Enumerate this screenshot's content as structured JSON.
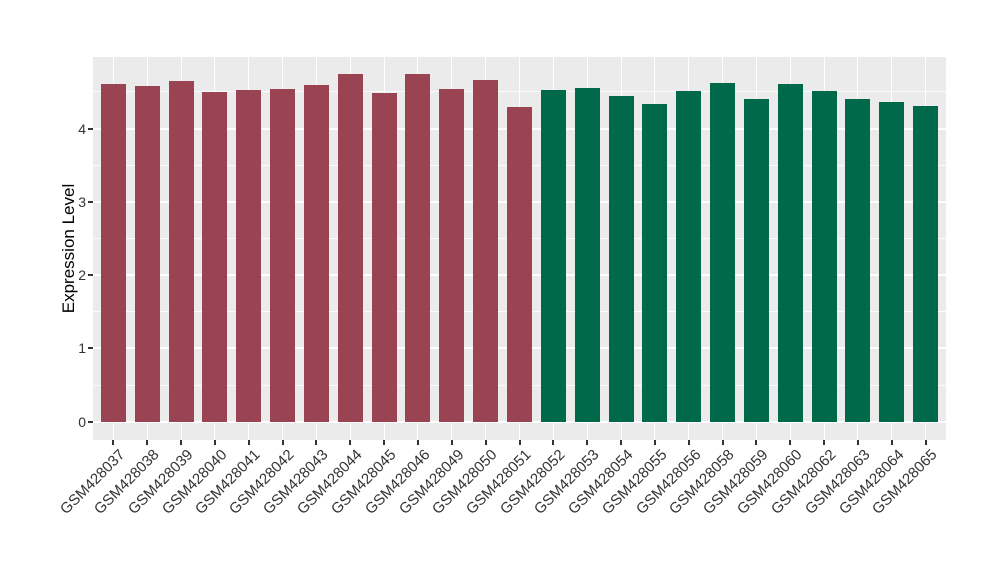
{
  "chart_data": {
    "type": "bar",
    "title": "",
    "xlabel": "",
    "ylabel": "Expression Level",
    "ylim": [
      0,
      4.99
    ],
    "y_ticks": [
      "0",
      "1",
      "2",
      "3",
      "4"
    ],
    "y_minor_ticks": [
      0.5,
      1.5,
      2.5,
      3.5,
      4.5
    ],
    "grid": "on",
    "legend_position": "none",
    "panel_background_color": "#EBEBEB",
    "gridline_color": "#FFFFFF",
    "axis_text_color": "#333333",
    "group_colors": [
      "#9A4352",
      "#006949"
    ],
    "bars": [
      {
        "label": "GSM428037",
        "value": 4.61,
        "color": "#9A4352"
      },
      {
        "label": "GSM428038",
        "value": 4.58,
        "color": "#9A4352"
      },
      {
        "label": "GSM428039",
        "value": 4.65,
        "color": "#9A4352"
      },
      {
        "label": "GSM428040",
        "value": 4.5,
        "color": "#9A4352"
      },
      {
        "label": "GSM428041",
        "value": 4.52,
        "color": "#9A4352"
      },
      {
        "label": "GSM428042",
        "value": 4.54,
        "color": "#9A4352"
      },
      {
        "label": "GSM428043",
        "value": 4.59,
        "color": "#9A4352"
      },
      {
        "label": "GSM428044",
        "value": 4.74,
        "color": "#9A4352"
      },
      {
        "label": "GSM428045",
        "value": 4.48,
        "color": "#9A4352"
      },
      {
        "label": "GSM428046",
        "value": 4.74,
        "color": "#9A4352"
      },
      {
        "label": "GSM428049",
        "value": 4.54,
        "color": "#9A4352"
      },
      {
        "label": "GSM428050",
        "value": 4.66,
        "color": "#9A4352"
      },
      {
        "label": "GSM428051",
        "value": 4.3,
        "color": "#9A4352"
      },
      {
        "label": "GSM428052",
        "value": 4.52,
        "color": "#006949"
      },
      {
        "label": "GSM428053",
        "value": 4.55,
        "color": "#006949"
      },
      {
        "label": "GSM428054",
        "value": 4.45,
        "color": "#006949"
      },
      {
        "label": "GSM428055",
        "value": 4.34,
        "color": "#006949"
      },
      {
        "label": "GSM428056",
        "value": 4.51,
        "color": "#006949"
      },
      {
        "label": "GSM428058",
        "value": 4.62,
        "color": "#006949"
      },
      {
        "label": "GSM428059",
        "value": 4.4,
        "color": "#006949"
      },
      {
        "label": "GSM428060",
        "value": 4.61,
        "color": "#006949"
      },
      {
        "label": "GSM428062",
        "value": 4.51,
        "color": "#006949"
      },
      {
        "label": "GSM428063",
        "value": 4.4,
        "color": "#006949"
      },
      {
        "label": "GSM428064",
        "value": 4.36,
        "color": "#006949"
      },
      {
        "label": "GSM428065",
        "value": 4.31,
        "color": "#006949"
      }
    ]
  }
}
